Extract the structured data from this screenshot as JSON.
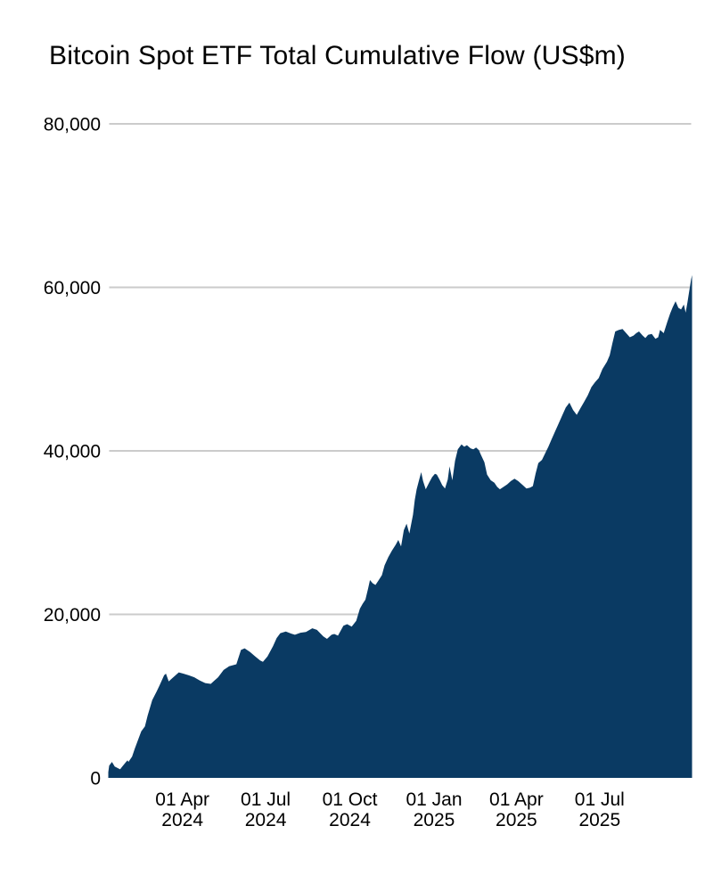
{
  "title": "Bitcoin Spot ETF Total Cumulative Flow (US$m)",
  "colors": {
    "area_fill": "#0a3a63",
    "gridline": "#cbcbcb",
    "text": "#000000",
    "background": "#ffffff"
  },
  "chart_data": {
    "type": "area",
    "title": "Bitcoin Spot ETF Total Cumulative Flow (US$m)",
    "legend": "none",
    "grid": "horizontal",
    "y_axis": {
      "range": [
        0,
        80000
      ],
      "tick_values": [
        0,
        20000,
        40000,
        60000,
        80000
      ],
      "tick_labels": [
        "0",
        "20,000",
        "40,000",
        "60,000",
        "80,000"
      ]
    },
    "x_axis": {
      "range": [
        "2024-01-11",
        "2025-10-10"
      ],
      "ticks": [
        {
          "date": "2024-04-01",
          "line1": "01 Apr",
          "line2": "2024"
        },
        {
          "date": "2024-07-01",
          "line1": "01 Jul",
          "line2": "2024"
        },
        {
          "date": "2024-10-01",
          "line1": "01 Oct",
          "line2": "2024"
        },
        {
          "date": "2025-01-01",
          "line1": "01 Jan",
          "line2": "2025"
        },
        {
          "date": "2025-04-01",
          "line1": "01 Apr",
          "line2": "2025"
        },
        {
          "date": "2025-07-01",
          "line1": "01 Jul",
          "line2": "2025"
        }
      ]
    },
    "series": [
      {
        "name": "Total Cumulative Flow (US$m)",
        "points": [
          [
            "2024-01-11",
            700
          ],
          [
            "2024-01-12",
            1500
          ],
          [
            "2024-01-15",
            1950
          ],
          [
            "2024-01-18",
            1400
          ],
          [
            "2024-01-22",
            1150
          ],
          [
            "2024-01-24",
            1050
          ],
          [
            "2024-01-26",
            1350
          ],
          [
            "2024-01-30",
            1900
          ],
          [
            "2024-02-01",
            2150
          ],
          [
            "2024-02-02",
            1950
          ],
          [
            "2024-02-06",
            2600
          ],
          [
            "2024-02-09",
            3600
          ],
          [
            "2024-02-13",
            4800
          ],
          [
            "2024-02-16",
            5700
          ],
          [
            "2024-02-20",
            6300
          ],
          [
            "2024-02-23",
            7600
          ],
          [
            "2024-02-28",
            9500
          ],
          [
            "2024-03-04",
            10600
          ],
          [
            "2024-03-07",
            11300
          ],
          [
            "2024-03-12",
            12550
          ],
          [
            "2024-03-14",
            12750
          ],
          [
            "2024-03-17",
            11800
          ],
          [
            "2024-03-20",
            12100
          ],
          [
            "2024-03-25",
            12600
          ],
          [
            "2024-03-28",
            12900
          ],
          [
            "2024-04-02",
            12750
          ],
          [
            "2024-04-08",
            12550
          ],
          [
            "2024-04-14",
            12300
          ],
          [
            "2024-04-20",
            11900
          ],
          [
            "2024-04-26",
            11600
          ],
          [
            "2024-05-02",
            11500
          ],
          [
            "2024-05-06",
            11900
          ],
          [
            "2024-05-10",
            12300
          ],
          [
            "2024-05-16",
            13200
          ],
          [
            "2024-05-22",
            13650
          ],
          [
            "2024-05-30",
            13900
          ],
          [
            "2024-06-04",
            15650
          ],
          [
            "2024-06-08",
            15850
          ],
          [
            "2024-06-14",
            15400
          ],
          [
            "2024-06-19",
            14900
          ],
          [
            "2024-06-25",
            14350
          ],
          [
            "2024-06-28",
            14200
          ],
          [
            "2024-07-03",
            14850
          ],
          [
            "2024-07-09",
            16100
          ],
          [
            "2024-07-13",
            17100
          ],
          [
            "2024-07-17",
            17700
          ],
          [
            "2024-07-23",
            17900
          ],
          [
            "2024-07-29",
            17650
          ],
          [
            "2024-08-02",
            17500
          ],
          [
            "2024-08-08",
            17750
          ],
          [
            "2024-08-14",
            17850
          ],
          [
            "2024-08-21",
            18300
          ],
          [
            "2024-08-26",
            18100
          ],
          [
            "2024-09-02",
            17300
          ],
          [
            "2024-09-06",
            17000
          ],
          [
            "2024-09-11",
            17500
          ],
          [
            "2024-09-14",
            17600
          ],
          [
            "2024-09-18",
            17400
          ],
          [
            "2024-09-24",
            18600
          ],
          [
            "2024-09-28",
            18800
          ],
          [
            "2024-10-03",
            18500
          ],
          [
            "2024-10-08",
            19200
          ],
          [
            "2024-10-12",
            20700
          ],
          [
            "2024-10-15",
            21300
          ],
          [
            "2024-10-18",
            21800
          ],
          [
            "2024-10-21",
            23200
          ],
          [
            "2024-10-23",
            24200
          ],
          [
            "2024-10-26",
            23800
          ],
          [
            "2024-10-29",
            23600
          ],
          [
            "2024-11-01",
            24100
          ],
          [
            "2024-11-05",
            24800
          ],
          [
            "2024-11-08",
            26000
          ],
          [
            "2024-11-12",
            27000
          ],
          [
            "2024-11-16",
            27800
          ],
          [
            "2024-11-20",
            28500
          ],
          [
            "2024-11-23",
            29100
          ],
          [
            "2024-11-26",
            28300
          ],
          [
            "2024-11-29",
            30300
          ],
          [
            "2024-12-02",
            31100
          ],
          [
            "2024-12-05",
            29900
          ],
          [
            "2024-12-09",
            32200
          ],
          [
            "2024-12-11",
            34000
          ],
          [
            "2024-12-13",
            35300
          ],
          [
            "2024-12-16",
            36600
          ],
          [
            "2024-12-18",
            37400
          ],
          [
            "2024-12-20",
            36300
          ],
          [
            "2024-12-23",
            35300
          ],
          [
            "2024-12-27",
            36200
          ],
          [
            "2024-12-30",
            36800
          ],
          [
            "2025-01-02",
            37200
          ],
          [
            "2025-01-04",
            37100
          ],
          [
            "2025-01-07",
            36500
          ],
          [
            "2025-01-10",
            35800
          ],
          [
            "2025-01-13",
            35400
          ],
          [
            "2025-01-16",
            36500
          ],
          [
            "2025-01-18",
            38100
          ],
          [
            "2025-01-21",
            36400
          ],
          [
            "2025-01-24",
            38800
          ],
          [
            "2025-01-27",
            40200
          ],
          [
            "2025-01-31",
            40800
          ],
          [
            "2025-02-03",
            40500
          ],
          [
            "2025-02-06",
            40700
          ],
          [
            "2025-02-10",
            40300
          ],
          [
            "2025-02-13",
            40200
          ],
          [
            "2025-02-16",
            40400
          ],
          [
            "2025-02-19",
            40100
          ],
          [
            "2025-02-21",
            39600
          ],
          [
            "2025-02-25",
            38600
          ],
          [
            "2025-02-28",
            37100
          ],
          [
            "2025-03-04",
            36400
          ],
          [
            "2025-03-08",
            36100
          ],
          [
            "2025-03-11",
            35600
          ],
          [
            "2025-03-14",
            35300
          ],
          [
            "2025-03-18",
            35600
          ],
          [
            "2025-03-22",
            35900
          ],
          [
            "2025-03-26",
            36300
          ],
          [
            "2025-03-30",
            36600
          ],
          [
            "2025-04-03",
            36300
          ],
          [
            "2025-04-08",
            35800
          ],
          [
            "2025-04-12",
            35400
          ],
          [
            "2025-04-16",
            35500
          ],
          [
            "2025-04-19",
            35700
          ],
          [
            "2025-04-22",
            37200
          ],
          [
            "2025-04-25",
            38500
          ],
          [
            "2025-04-29",
            38900
          ],
          [
            "2025-05-02",
            39600
          ],
          [
            "2025-05-06",
            40500
          ],
          [
            "2025-05-09",
            41300
          ],
          [
            "2025-05-13",
            42300
          ],
          [
            "2025-05-17",
            43300
          ],
          [
            "2025-05-21",
            44300
          ],
          [
            "2025-05-25",
            45300
          ],
          [
            "2025-05-29",
            45900
          ],
          [
            "2025-06-02",
            45000
          ],
          [
            "2025-06-06",
            44400
          ],
          [
            "2025-06-10",
            45200
          ],
          [
            "2025-06-14",
            46000
          ],
          [
            "2025-06-18",
            46800
          ],
          [
            "2025-06-22",
            47800
          ],
          [
            "2025-06-26",
            48400
          ],
          [
            "2025-06-30",
            48900
          ],
          [
            "2025-07-04",
            50000
          ],
          [
            "2025-07-09",
            50900
          ],
          [
            "2025-07-12",
            51700
          ],
          [
            "2025-07-15",
            53200
          ],
          [
            "2025-07-18",
            54600
          ],
          [
            "2025-07-22",
            54800
          ],
          [
            "2025-07-26",
            54900
          ],
          [
            "2025-07-30",
            54400
          ],
          [
            "2025-08-03",
            53900
          ],
          [
            "2025-08-07",
            54100
          ],
          [
            "2025-08-10",
            54400
          ],
          [
            "2025-08-13",
            54600
          ],
          [
            "2025-08-17",
            54100
          ],
          [
            "2025-08-20",
            53800
          ],
          [
            "2025-08-23",
            54200
          ],
          [
            "2025-08-27",
            54300
          ],
          [
            "2025-08-31",
            53700
          ],
          [
            "2025-09-03",
            53900
          ],
          [
            "2025-09-05",
            54800
          ],
          [
            "2025-09-09",
            54400
          ],
          [
            "2025-09-13",
            55800
          ],
          [
            "2025-09-16",
            56800
          ],
          [
            "2025-09-19",
            57600
          ],
          [
            "2025-09-22",
            58300
          ],
          [
            "2025-09-25",
            57500
          ],
          [
            "2025-09-28",
            57300
          ],
          [
            "2025-10-01",
            57900
          ],
          [
            "2025-10-03",
            56900
          ],
          [
            "2025-10-05",
            58200
          ],
          [
            "2025-10-07",
            59600
          ],
          [
            "2025-10-09",
            61000
          ],
          [
            "2025-10-10",
            61500
          ]
        ]
      }
    ]
  }
}
